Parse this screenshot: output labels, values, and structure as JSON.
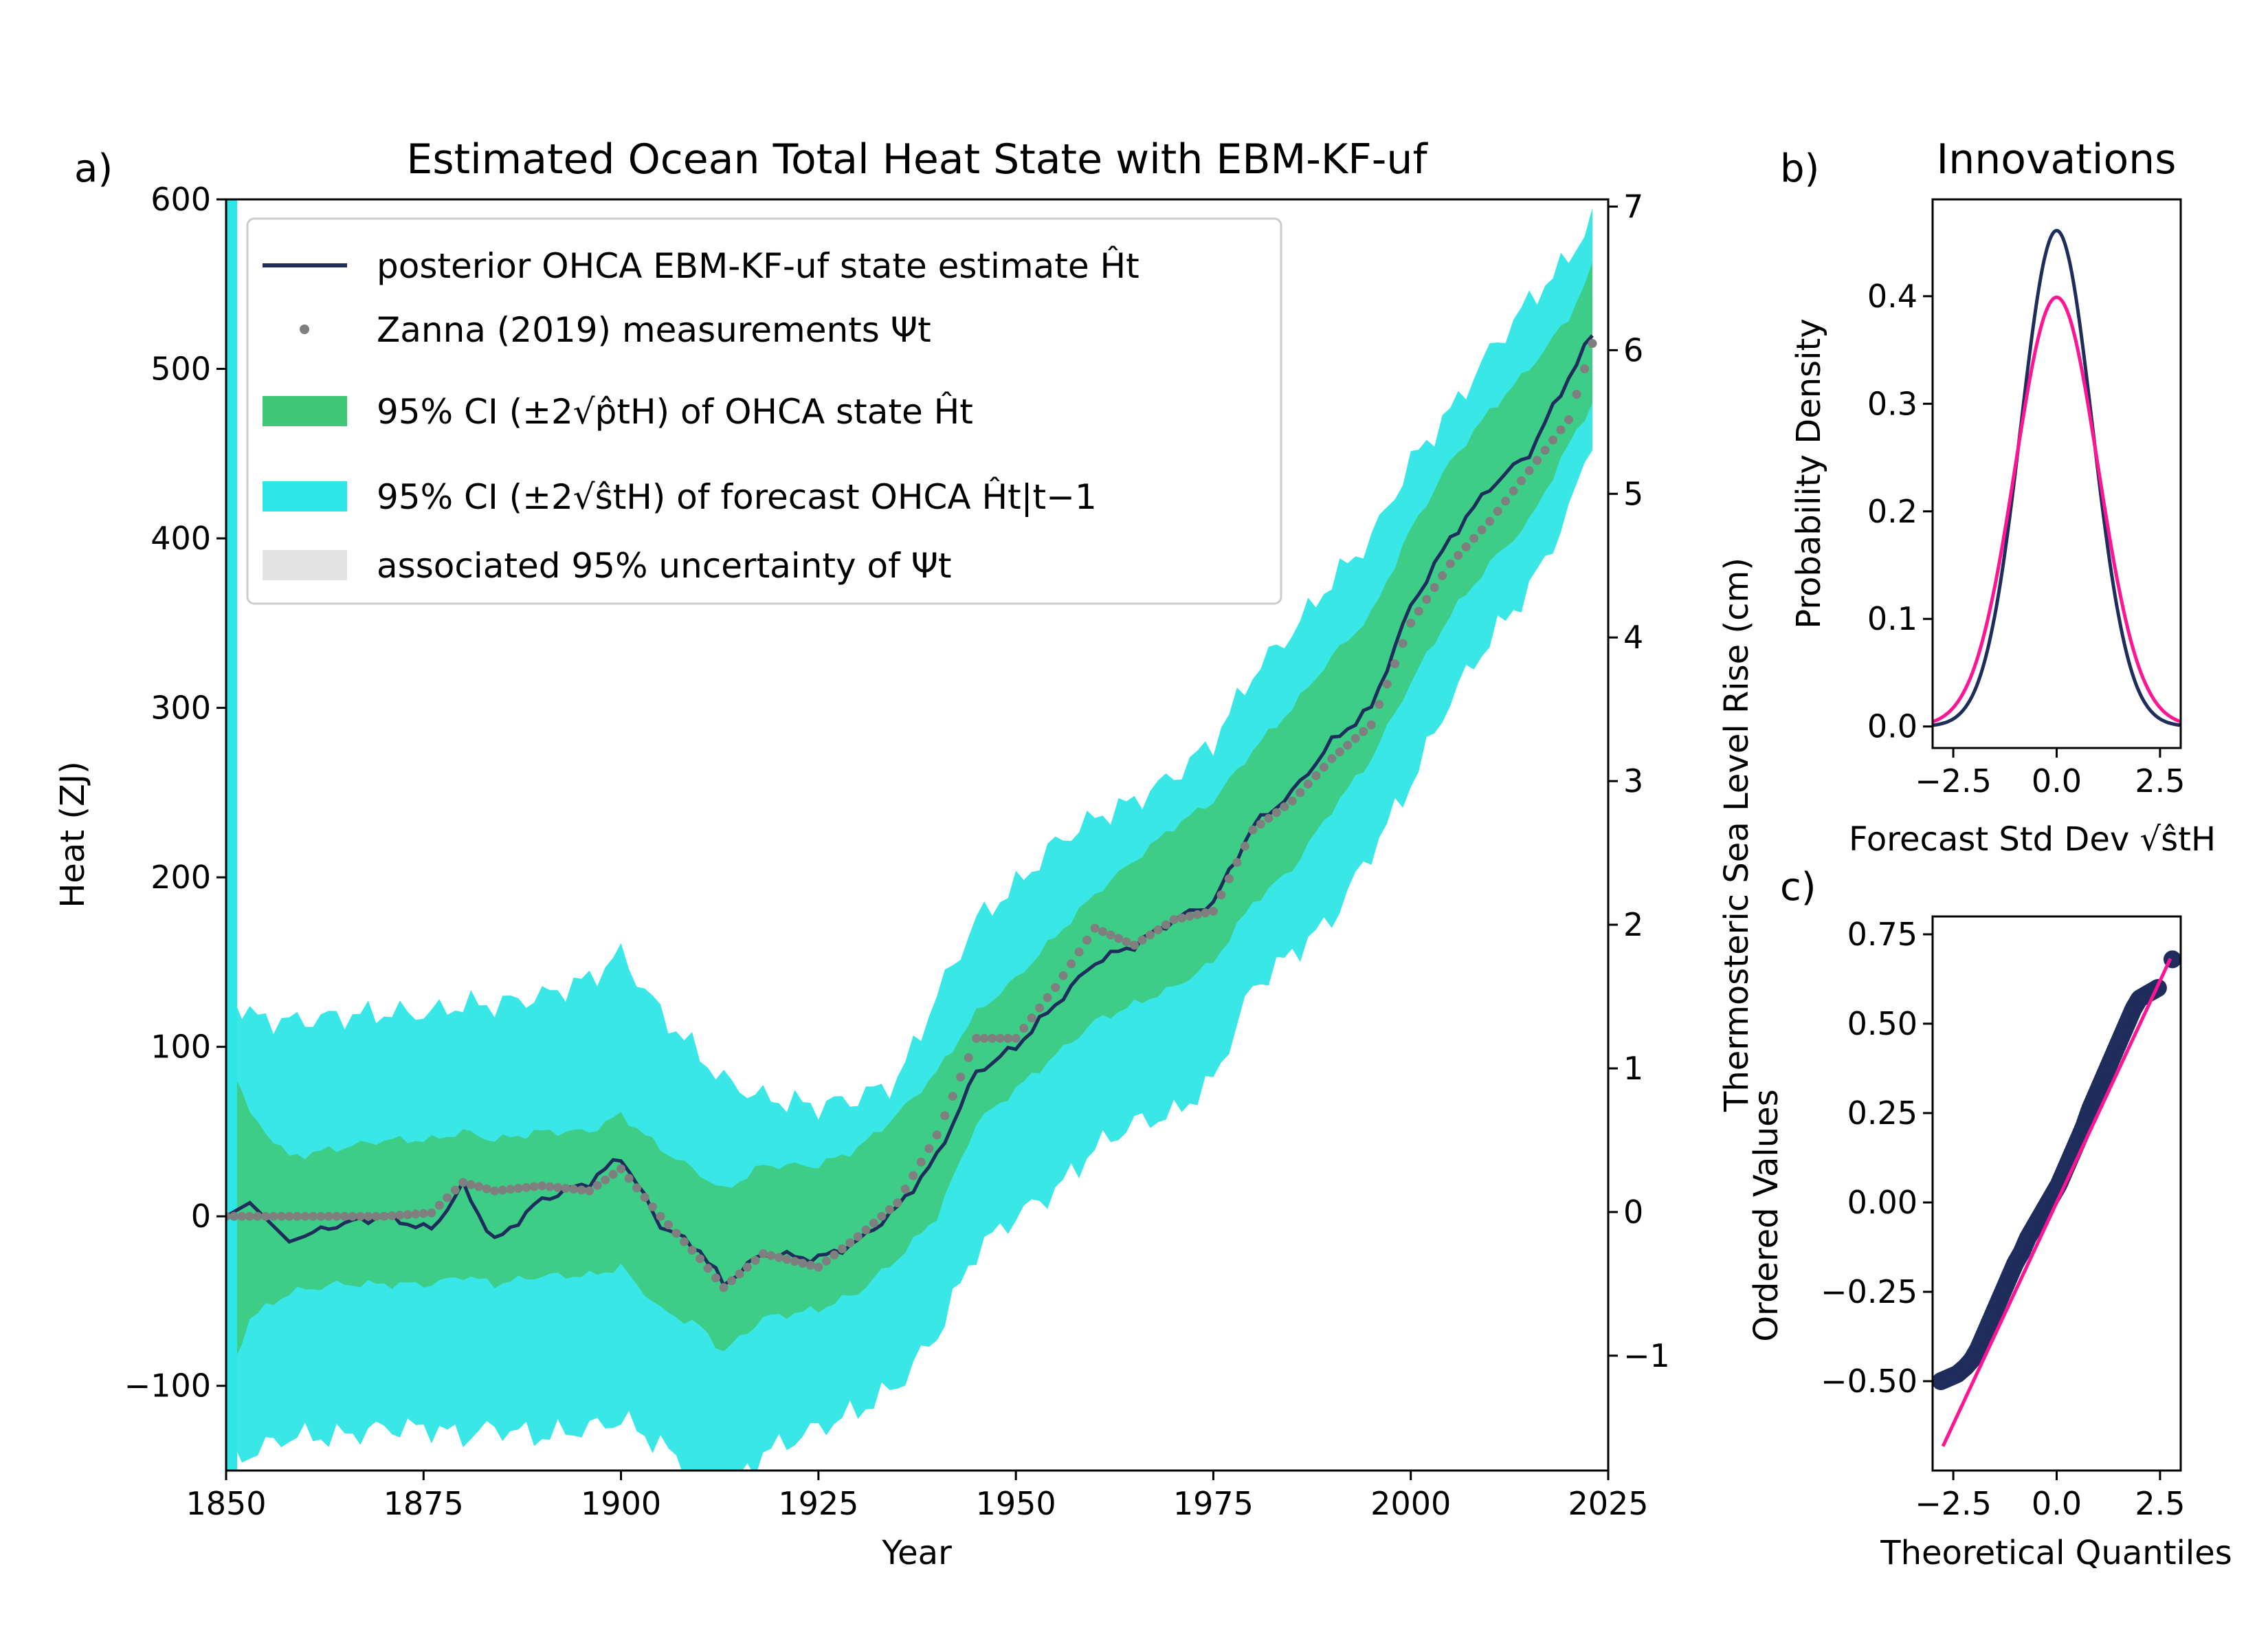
{
  "colors": {
    "state_line": "#1f2d5c",
    "measurement_dots": "#7f7f7f",
    "ci_state": "#3ec875",
    "ci_forecast": "#2ee6e6",
    "meas_uncertainty": "#e3e3e3",
    "normal_ref": "#ff1493",
    "qq_points": "#1f2d5c"
  },
  "panel_a": {
    "label": "a)",
    "title": "Estimated Ocean Total Heat State with EBM-KF-uf",
    "xlabel": "Year",
    "ylabel": "Heat (ZJ)",
    "y2label": "Thermosteric Sea Level Rise (cm)",
    "xticks": [
      "1850",
      "1875",
      "1900",
      "1925",
      "1950",
      "1975",
      "2000",
      "2025"
    ],
    "yticks": [
      "600",
      "500",
      "400",
      "300",
      "200",
      "100",
      "0",
      "−100"
    ],
    "y2ticks": [
      "7",
      "6",
      "5",
      "4",
      "3",
      "2",
      "1",
      "0",
      "−1"
    ],
    "legend": [
      "posterior OHCA EBM-KF-uf state estimate Ĥt",
      "Zanna (2019) measurements Ψt",
      "95% CI (±2√p̂tH) of OHCA state Ĥt",
      "95% CI (±2√ŝtH) of forecast OHCA Ĥt|t−1",
      "associated 95% uncertainty of Ψt"
    ]
  },
  "panel_b": {
    "label": "b)",
    "title": "Innovations",
    "xlabel": "Forecast Std Dev √ŝtH",
    "ylabel": "Probability Density",
    "xticks": [
      "−2.5",
      "0.0",
      "2.5"
    ],
    "yticks": [
      "0.4",
      "0.3",
      "0.2",
      "0.1",
      "0.0"
    ]
  },
  "panel_c": {
    "label": "c)",
    "xlabel": "Theoretical Quantiles",
    "ylabel": "Ordered Values",
    "xticks": [
      "−2.5",
      "0.0",
      "2.5"
    ],
    "yticks": [
      "0.75",
      "0.50",
      "0.25",
      "0.00",
      "−0.25",
      "−0.50"
    ]
  },
  "chart_data": [
    {
      "type": "line",
      "panel": "a",
      "title": "Estimated Ocean Total Heat State with EBM-KF-uf",
      "xlabel": "Year",
      "ylabel": "Heat (ZJ)",
      "y2label": "Thermosteric Sea Level Rise (cm)",
      "xlim": [
        1850,
        2025
      ],
      "ylim": [
        -150,
        600
      ],
      "y2lim": [
        -1.8,
        7.05
      ],
      "legend_position": "top-left",
      "x_anchor": [
        1850,
        1853,
        1858,
        1864,
        1870,
        1876,
        1880,
        1884,
        1890,
        1896,
        1900,
        1905,
        1910,
        1913,
        1918,
        1925,
        1930,
        1935,
        1940,
        1945,
        1950,
        1955,
        1960,
        1965,
        1970,
        1975,
        1980,
        1985,
        1990,
        1995,
        2000,
        2005,
        2010,
        2015,
        2020,
        2023
      ],
      "series": [
        {
          "name": "posterior OHCA EBM-KF-uf state estimate Ĥt",
          "y": [
            0,
            8,
            -15,
            -5,
            0,
            -8,
            18,
            -15,
            10,
            20,
            35,
            -5,
            -20,
            -40,
            -22,
            -25,
            -15,
            5,
            35,
            85,
            100,
            125,
            150,
            160,
            175,
            185,
            230,
            250,
            280,
            300,
            360,
            400,
            430,
            450,
            495,
            520
          ]
        },
        {
          "name": "Zanna (2019) measurements Ψt",
          "y": [
            0,
            0,
            0,
            0,
            0,
            2,
            20,
            15,
            18,
            15,
            28,
            0,
            -25,
            -42,
            -22,
            -30,
            -12,
            8,
            48,
            105,
            105,
            135,
            170,
            160,
            175,
            180,
            228,
            245,
            270,
            290,
            350,
            385,
            410,
            440,
            470,
            515
          ]
        },
        {
          "name": "95% CI (±2√p̂tH) of OHCA state Ĥt",
          "upper": [
            100,
            60,
            35,
            40,
            45,
            45,
            50,
            45,
            50,
            50,
            60,
            40,
            25,
            15,
            30,
            30,
            40,
            60,
            85,
            120,
            140,
            165,
            190,
            210,
            230,
            245,
            275,
            300,
            330,
            355,
            405,
            445,
            475,
            500,
            530,
            560
          ],
          "lower": [
            -100,
            -60,
            -45,
            -40,
            -40,
            -40,
            -35,
            -40,
            -35,
            -35,
            -30,
            -55,
            -65,
            -80,
            -60,
            -55,
            -45,
            -25,
            0,
            55,
            75,
            95,
            115,
            125,
            135,
            150,
            185,
            205,
            240,
            270,
            315,
            355,
            385,
            410,
            455,
            480
          ]
        },
        {
          "name": "95% CI (±2√ŝtH) of forecast OHCA Ĥt|t−1",
          "upper": [
            135,
            118,
            115,
            118,
            120,
            120,
            125,
            125,
            130,
            140,
            155,
            120,
            95,
            80,
            70,
            65,
            70,
            80,
            130,
            175,
            195,
            220,
            235,
            245,
            260,
            280,
            320,
            345,
            375,
            400,
            445,
            475,
            510,
            540,
            565,
            590
          ],
          "lower": [
            -145,
            -140,
            -130,
            -130,
            -125,
            -125,
            -130,
            -125,
            -130,
            -125,
            -120,
            -135,
            -155,
            -165,
            -140,
            -125,
            -115,
            -100,
            -70,
            -20,
            0,
            15,
            40,
            55,
            60,
            80,
            135,
            155,
            175,
            215,
            255,
            305,
            340,
            370,
            415,
            460
          ]
        },
        {
          "name": "associated 95% uncertainty of Ψt",
          "upper": [
            0,
            0,
            0,
            0,
            0,
            10,
            30,
            25,
            30,
            35,
            45,
            20,
            0,
            -20,
            -10,
            -15,
            5,
            30,
            80,
            140,
            140,
            170,
            205,
            200,
            205,
            210,
            245,
            260,
            285,
            300,
            360,
            395,
            420,
            450,
            480,
            525
          ],
          "lower": [
            0,
            0,
            0,
            0,
            0,
            -5,
            10,
            5,
            8,
            0,
            10,
            -20,
            -50,
            -65,
            -35,
            -45,
            -30,
            -15,
            15,
            70,
            70,
            100,
            135,
            120,
            145,
            150,
            210,
            230,
            255,
            280,
            340,
            375,
            400,
            430,
            460,
            505
          ]
        }
      ]
    },
    {
      "type": "line",
      "panel": "b",
      "title": "Innovations",
      "xlabel": "Forecast Std Dev √ŝtH",
      "ylabel": "Probability Density",
      "xlim": [
        -3.0,
        3.0
      ],
      "ylim": [
        -0.02,
        0.49
      ],
      "series": [
        {
          "name": "",
          "distribution": "normal",
          "mean": 0.0,
          "std": 0.865,
          "peak": 0.461
        },
        {
          "name": "",
          "distribution": "normal",
          "mean": 0.0,
          "std": 1.0,
          "peak": 0.399
        }
      ]
    },
    {
      "type": "scatter",
      "panel": "c",
      "xlabel": "Theoretical Quantiles",
      "ylabel": "Ordered Values",
      "xlim": [
        -3.0,
        3.0
      ],
      "ylim": [
        -0.75,
        0.8
      ],
      "points_x": [
        -2.8,
        -2.6,
        -2.4,
        -2.2,
        -2.05,
        -1.9,
        -1.75,
        -1.6,
        -1.45,
        -1.3,
        -1.15,
        -1.0,
        -0.85,
        -0.7,
        -0.55,
        -0.4,
        -0.25,
        -0.1,
        0.05,
        0.2,
        0.35,
        0.5,
        0.65,
        0.8,
        0.95,
        1.1,
        1.25,
        1.4,
        1.55,
        1.7,
        1.85,
        2.0,
        2.15,
        2.3,
        2.45,
        2.8
      ],
      "points_y": [
        -0.5,
        -0.49,
        -0.48,
        -0.46,
        -0.44,
        -0.41,
        -0.37,
        -0.33,
        -0.29,
        -0.25,
        -0.21,
        -0.17,
        -0.14,
        -0.1,
        -0.07,
        -0.04,
        -0.01,
        0.02,
        0.05,
        0.09,
        0.13,
        0.17,
        0.21,
        0.26,
        0.3,
        0.34,
        0.38,
        0.42,
        0.46,
        0.5,
        0.54,
        0.57,
        0.58,
        0.59,
        0.6,
        0.68
      ],
      "reference_line": {
        "slope": 0.248,
        "intercept": 0.0,
        "x_range": [
          -2.75,
          2.75
        ]
      }
    }
  ]
}
